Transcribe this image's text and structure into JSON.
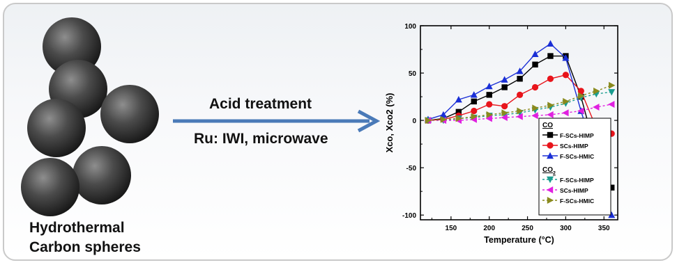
{
  "left_caption": {
    "line1": "Hydrothermal",
    "line2": "Carbon spheres"
  },
  "process": {
    "line1": "Acid treatment",
    "line2": "Ru: IWI, microwave"
  },
  "colors": {
    "arrow": "#4a7ab8",
    "frame": "#c9c9c9"
  },
  "chart_data": {
    "type": "line",
    "ylabel": "Xco, Xco2 (%)",
    "xlabel": "Temperature (°C)",
    "xlim": [
      110,
      368
    ],
    "ylim": [
      -105,
      100
    ],
    "xticks": [
      150,
      200,
      250,
      300,
      350
    ],
    "yticks": [
      -100,
      -50,
      0,
      50,
      100
    ],
    "legend_position": "bottom-right",
    "legend_groups": [
      {
        "title": "CO",
        "items": [
          0,
          1,
          2
        ]
      },
      {
        "title": "CO2",
        "items": [
          3,
          4,
          5
        ]
      }
    ],
    "series": [
      {
        "name": "F-SCs-HIMP",
        "group": "CO",
        "color": "#000000",
        "marker": "square",
        "dashed": false,
        "x": [
          120,
          140,
          160,
          180,
          200,
          220,
          240,
          260,
          280,
          300,
          320,
          340,
          360
        ],
        "y": [
          0,
          2,
          9,
          20,
          27,
          35,
          44,
          59,
          68,
          68,
          25,
          -35,
          -71
        ]
      },
      {
        "name": "SCs-HIMP",
        "group": "CO",
        "color": "#e8141b",
        "marker": "circle",
        "dashed": false,
        "x": [
          120,
          140,
          160,
          180,
          200,
          220,
          240,
          260,
          280,
          300,
          320,
          340,
          360
        ],
        "y": [
          0,
          1,
          5,
          10,
          17,
          15,
          27,
          35,
          44,
          48,
          31,
          -8,
          -14
        ]
      },
      {
        "name": "F-SCs-HMIC",
        "group": "CO",
        "color": "#1a2fd6",
        "marker": "triangle-up",
        "dashed": false,
        "x": [
          120,
          140,
          160,
          180,
          200,
          220,
          240,
          260,
          280,
          300,
          320,
          340,
          360
        ],
        "y": [
          1,
          6,
          22,
          27,
          36,
          43,
          52,
          70,
          81,
          66,
          10,
          -42,
          -100
        ]
      },
      {
        "name": "F-SCs-HIMP",
        "group": "CO2",
        "color": "#1a9d8f",
        "marker": "triangle-down",
        "dashed": true,
        "x": [
          120,
          140,
          160,
          180,
          200,
          220,
          240,
          260,
          280,
          300,
          320,
          340,
          360
        ],
        "y": [
          0,
          0,
          2,
          3,
          5,
          6,
          8,
          11,
          14,
          18,
          24,
          28,
          30
        ]
      },
      {
        "name": "SCs-HIMP",
        "group": "CO2",
        "color": "#e020e0",
        "marker": "triangle-left",
        "dashed": true,
        "x": [
          120,
          140,
          160,
          180,
          200,
          220,
          240,
          260,
          280,
          300,
          320,
          340,
          360
        ],
        "y": [
          0,
          0,
          0,
          1,
          2,
          3,
          4,
          5,
          6,
          8,
          10,
          14,
          17
        ]
      },
      {
        "name": "F-SCs-HMIC",
        "group": "CO2",
        "color": "#8a8a1e",
        "marker": "triangle-right",
        "dashed": true,
        "x": [
          120,
          140,
          160,
          180,
          200,
          220,
          240,
          260,
          280,
          300,
          320,
          340,
          360
        ],
        "y": [
          0,
          1,
          2,
          4,
          6,
          8,
          10,
          13,
          16,
          20,
          26,
          31,
          37
        ]
      }
    ]
  }
}
